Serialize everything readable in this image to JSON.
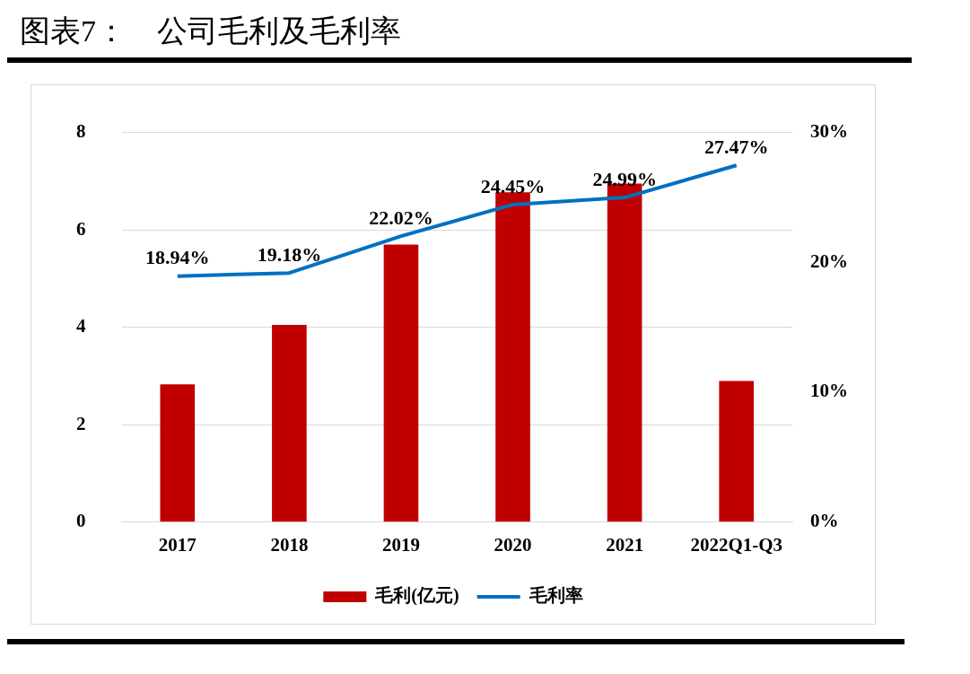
{
  "chart_data": {
    "type": "bar",
    "title": "图表7：　公司毛利及毛利率",
    "categories": [
      "2017",
      "2018",
      "2019",
      "2020",
      "2021",
      "2022Q1-Q3"
    ],
    "series": [
      {
        "name": "毛利(亿元)",
        "color": "#c00000",
        "values": [
          2.83,
          4.05,
          5.7,
          6.77,
          6.95,
          2.9
        ]
      },
      {
        "name": "毛利率",
        "type": "line",
        "axis": "y2",
        "color": "#0070c0",
        "values": [
          18.94,
          19.18,
          22.02,
          24.45,
          24.99,
          27.47
        ],
        "value_labels": [
          "18.94%",
          "19.18%",
          "22.02%",
          "24.45%",
          "24.99%",
          "27.47%"
        ]
      }
    ],
    "ylim": [
      0,
      8
    ],
    "yticks": [
      0,
      2,
      4,
      6,
      8
    ],
    "y2lim": [
      0,
      30
    ],
    "y2ticks": [
      {
        "value": 0,
        "label": "0%"
      },
      {
        "value": 10,
        "label": "10%"
      },
      {
        "value": 20,
        "label": "20%"
      },
      {
        "value": 30,
        "label": "30%"
      }
    ],
    "grid": "y",
    "legend": "bottom",
    "marker": "none"
  }
}
